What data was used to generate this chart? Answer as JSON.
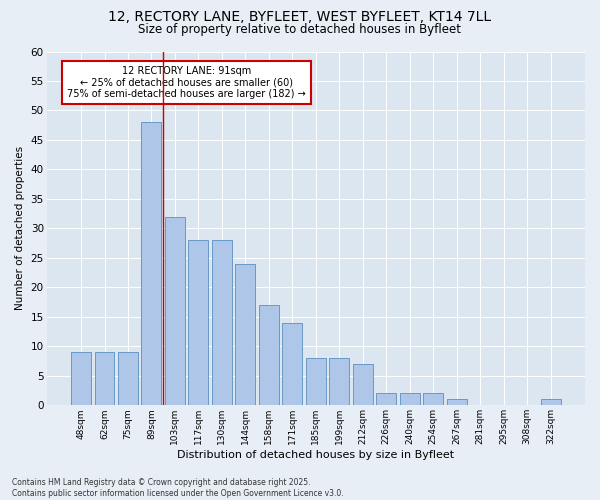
{
  "title_line1": "12, RECTORY LANE, BYFLEET, WEST BYFLEET, KT14 7LL",
  "title_line2": "Size of property relative to detached houses in Byfleet",
  "xlabel": "Distribution of detached houses by size in Byfleet",
  "ylabel": "Number of detached properties",
  "categories": [
    "48sqm",
    "62sqm",
    "75sqm",
    "89sqm",
    "103sqm",
    "117sqm",
    "130sqm",
    "144sqm",
    "158sqm",
    "171sqm",
    "185sqm",
    "199sqm",
    "212sqm",
    "226sqm",
    "240sqm",
    "254sqm",
    "267sqm",
    "281sqm",
    "295sqm",
    "308sqm",
    "322sqm"
  ],
  "values": [
    9,
    9,
    9,
    48,
    32,
    28,
    28,
    24,
    17,
    14,
    8,
    8,
    7,
    2,
    2,
    2,
    1,
    0,
    0,
    0,
    1
  ],
  "bar_color": "#aec6e8",
  "bar_edgecolor": "#5a8fc2",
  "vline_x_index": 3,
  "vline_color": "#cc0000",
  "annotation_text": "12 RECTORY LANE: 91sqm\n← 25% of detached houses are smaller (60)\n75% of semi-detached houses are larger (182) →",
  "annotation_box_color": "#ffffff",
  "annotation_box_edgecolor": "#cc0000",
  "ylim": [
    0,
    60
  ],
  "yticks": [
    0,
    5,
    10,
    15,
    20,
    25,
    30,
    35,
    40,
    45,
    50,
    55,
    60
  ],
  "footer": "Contains HM Land Registry data © Crown copyright and database right 2025.\nContains public sector information licensed under the Open Government Licence v3.0.",
  "bg_color": "#e8eef5",
  "plot_bg_color": "#dce6f0"
}
